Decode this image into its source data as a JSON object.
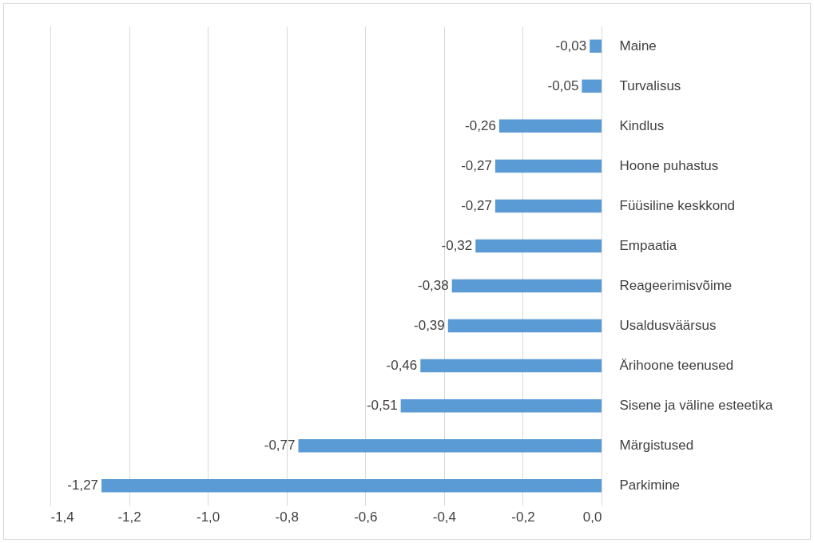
{
  "chart_data": {
    "type": "bar",
    "orientation": "horizontal",
    "categories": [
      "Maine",
      "Turvalisus",
      "Kindlus",
      "Hoone puhastus",
      "Füüsiline keskkond",
      "Empaatia",
      "Reageerimisvõime",
      "Usaldusväärsus",
      "Ärihoone teenused",
      "Sisene ja väline esteetika",
      "Märgistused",
      "Parkimine"
    ],
    "values": [
      -0.03,
      -0.05,
      -0.26,
      -0.27,
      -0.27,
      -0.32,
      -0.38,
      -0.39,
      -0.46,
      -0.51,
      -0.77,
      -1.27
    ],
    "value_labels": [
      "-0,03",
      "-0,05",
      "-0,26",
      "-0,27",
      "-0,27",
      "-0,32",
      "-0,38",
      "-0,39",
      "-0,46",
      "-0,51",
      "-0,77",
      "-1,27"
    ],
    "color": "#5b9bd5",
    "xlim": [
      -1.4,
      0
    ],
    "xticks": [
      {
        "value": -1.4,
        "label": "-1,4"
      },
      {
        "value": -1.2,
        "label": "-1,2"
      },
      {
        "value": -1.0,
        "label": "-1,0"
      },
      {
        "value": -0.8,
        "label": "-0,8"
      },
      {
        "value": -0.6,
        "label": "-0,6"
      },
      {
        "value": -0.4,
        "label": "-0,4"
      },
      {
        "value": -0.2,
        "label": "-0,2"
      },
      {
        "value": 0,
        "label": "0,0"
      }
    ],
    "grid": "x"
  }
}
